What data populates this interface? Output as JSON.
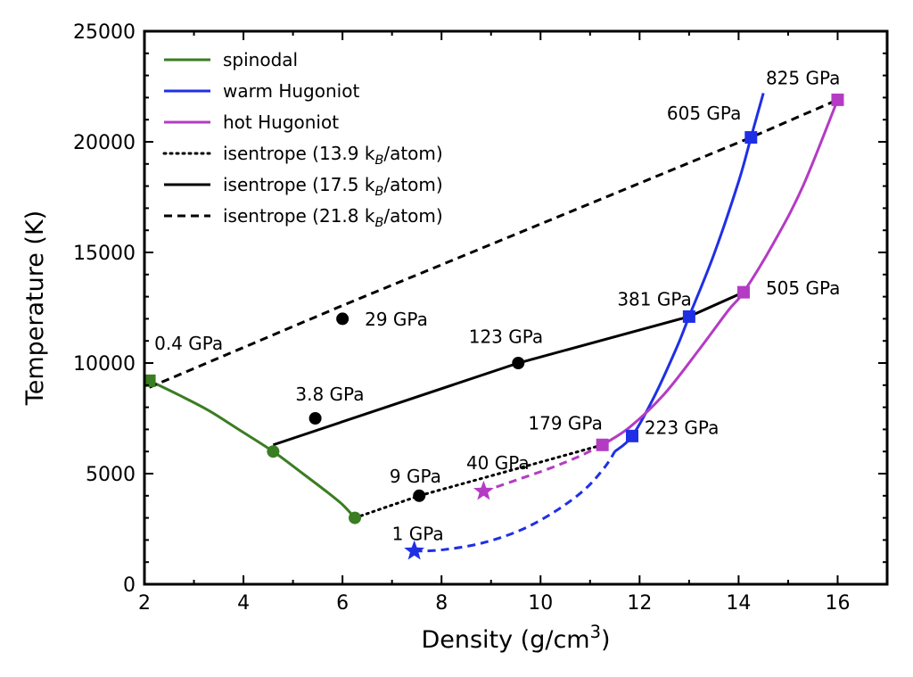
{
  "chart_data": {
    "type": "line",
    "xlabel": "Density (g/cm^3)",
    "ylabel": "Temperature (K)",
    "xlim": [
      2,
      17
    ],
    "ylim": [
      0,
      25000
    ],
    "xticks": [
      2,
      4,
      6,
      8,
      10,
      12,
      14,
      16
    ],
    "yticks": [
      0,
      5000,
      10000,
      15000,
      20000,
      25000
    ],
    "grid": false,
    "legend_position": "top-left",
    "series": [
      {
        "name": "spinodal",
        "color": "#3a7d22",
        "style": "solid",
        "x": [
          2.1,
          2.7,
          3.3,
          3.9,
          4.6,
          5.2,
          5.7,
          6.0,
          6.25
        ],
        "y": [
          9200,
          8550,
          7850,
          7000,
          6000,
          5000,
          4150,
          3600,
          3000
        ]
      },
      {
        "name": "warm Hugoniot",
        "color": "#1f2fe6",
        "style": "solid",
        "x": [
          11.5,
          11.85,
          12.3,
          12.75,
          13.0,
          13.5,
          14.0,
          14.25,
          14.5
        ],
        "y": [
          6000,
          6700,
          8500,
          10700,
          12100,
          14900,
          18200,
          20200,
          22200
        ]
      },
      {
        "name": "warm Hugoniot (dashed)",
        "color": "#1f2fe6",
        "style": "dashed",
        "x": [
          7.45,
          8.0,
          8.8,
          9.6,
          10.3,
          10.9,
          11.3,
          11.5
        ],
        "y": [
          1500,
          1550,
          1850,
          2450,
          3300,
          4300,
          5300,
          6000
        ]
      },
      {
        "name": "hot Hugoniot",
        "color": "#b43bc4",
        "style": "solid",
        "x": [
          11.25,
          11.8,
          12.5,
          13.2,
          13.8,
          14.1,
          14.7,
          15.3,
          16.0
        ],
        "y": [
          6300,
          7100,
          8600,
          10600,
          12400,
          13200,
          15400,
          18000,
          21900
        ]
      },
      {
        "name": "hot Hugoniot (dashed)",
        "color": "#b43bc4",
        "style": "dashed",
        "x": [
          8.85,
          9.5,
          10.2,
          10.8,
          11.25
        ],
        "y": [
          4200,
          4700,
          5250,
          5800,
          6300
        ]
      },
      {
        "name": "isentrope (13.9 k_B/atom)",
        "color": "#000000",
        "style": "dotted",
        "x": [
          6.25,
          7.55,
          11.25
        ],
        "y": [
          3000,
          4000,
          6300
        ]
      },
      {
        "name": "isentrope (17.5 k_B/atom)",
        "color": "#000000",
        "style": "solid",
        "x": [
          4.6,
          9.55,
          13.0,
          14.1
        ],
        "y": [
          6300,
          10000,
          12100,
          13200
        ]
      },
      {
        "name": "isentrope (21.8 k_B/atom)",
        "color": "#000000",
        "style": "dashed",
        "x": [
          2.1,
          6.0,
          14.25,
          16.0
        ],
        "y": [
          8900,
          12600,
          20200,
          21900
        ]
      }
    ],
    "markers": [
      {
        "shape": "circle",
        "color": "#3a7d22",
        "x": 4.6,
        "y": 6000
      },
      {
        "shape": "circle",
        "color": "#3a7d22",
        "x": 6.25,
        "y": 3000
      },
      {
        "shape": "square",
        "color": "#3a7d22",
        "x": 2.1,
        "y": 9200
      },
      {
        "shape": "circle",
        "color": "#000000",
        "x": 6.0,
        "y": 12000
      },
      {
        "shape": "circle",
        "color": "#000000",
        "x": 9.55,
        "y": 10000
      },
      {
        "shape": "circle",
        "color": "#000000",
        "x": 5.45,
        "y": 7500
      },
      {
        "shape": "circle",
        "color": "#000000",
        "x": 7.55,
        "y": 4000
      },
      {
        "shape": "square",
        "color": "#1f2fe6",
        "x": 14.25,
        "y": 20200
      },
      {
        "shape": "square",
        "color": "#1f2fe6",
        "x": 13.0,
        "y": 12100
      },
      {
        "shape": "square",
        "color": "#1f2fe6",
        "x": 11.85,
        "y": 6700
      },
      {
        "shape": "square",
        "color": "#b43bc4",
        "x": 16.0,
        "y": 21900
      },
      {
        "shape": "square",
        "color": "#b43bc4",
        "x": 14.1,
        "y": 13200
      },
      {
        "shape": "square",
        "color": "#b43bc4",
        "x": 11.25,
        "y": 6300
      },
      {
        "shape": "star",
        "color": "#1f2fe6",
        "x": 7.45,
        "y": 1500
      },
      {
        "shape": "star",
        "color": "#b43bc4",
        "x": 8.85,
        "y": 4200
      }
    ],
    "annotations": [
      {
        "text": "825 GPa",
        "x": 14.55,
        "y": 22600
      },
      {
        "text": "605 GPa",
        "x": 12.55,
        "y": 21000
      },
      {
        "text": "505 GPa",
        "x": 14.55,
        "y": 13100
      },
      {
        "text": "381 GPa",
        "x": 11.55,
        "y": 12600
      },
      {
        "text": "29 GPa",
        "x": 6.45,
        "y": 11700
      },
      {
        "text": "123 GPa",
        "x": 8.55,
        "y": 10900
      },
      {
        "text": "0.4 GPa",
        "x": 2.2,
        "y": 10600
      },
      {
        "text": "3.8 GPa",
        "x": 5.05,
        "y": 8300
      },
      {
        "text": "179 GPa",
        "x": 9.75,
        "y": 7000
      },
      {
        "text": "223 GPa",
        "x": 12.1,
        "y": 6800
      },
      {
        "text": "40 GPa",
        "x": 8.5,
        "y": 5200
      },
      {
        "text": "9 GPa",
        "x": 6.95,
        "y": 4600
      },
      {
        "text": "1 GPa",
        "x": 7.0,
        "y": 2000
      }
    ],
    "legend": [
      "spinodal",
      "warm Hugoniot",
      "hot Hugoniot",
      "isentrope (13.9 k_B/atom)",
      "isentrope (17.5 k_B/atom)",
      "isentrope (21.8 k_B/atom)"
    ]
  }
}
